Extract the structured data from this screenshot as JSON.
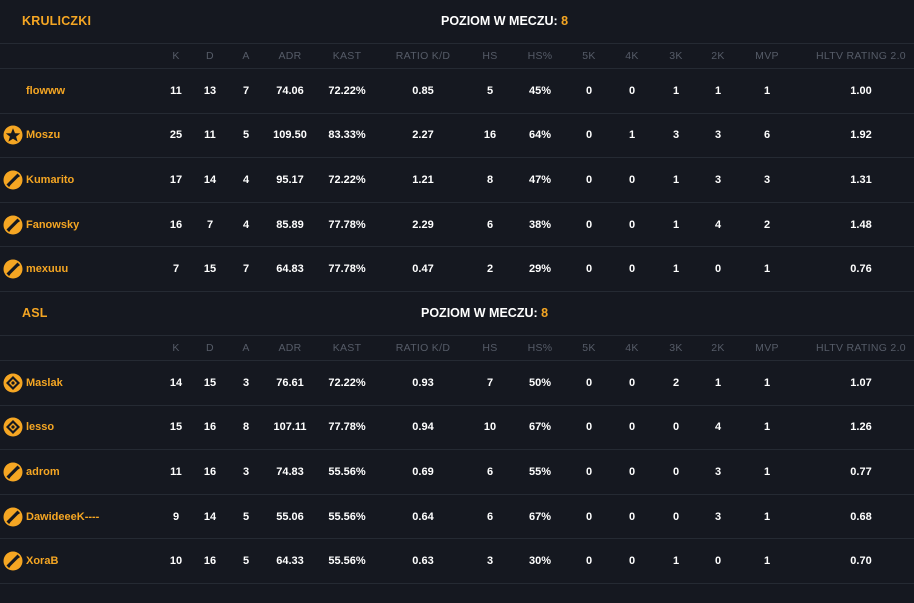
{
  "level_label": "POZIOM W MECZU:",
  "columns": [
    "K",
    "D",
    "A",
    "ADR",
    "KAST",
    "RATIO K/D",
    "HS",
    "HS%",
    "5K",
    "4K",
    "3K",
    "2K",
    "MVP",
    "HLTV RATING 2.0"
  ],
  "teams": [
    {
      "name": "KRULICZKI",
      "level": "8",
      "players": [
        {
          "name": "flowww",
          "icon": "none",
          "k": "11",
          "d": "13",
          "a": "7",
          "adr": "74.06",
          "kast": "72.22%",
          "ratio": "0.85",
          "hs": "5",
          "hsp": "45%",
          "k5": "0",
          "k4": "0",
          "k3": "1",
          "k2": "1",
          "mvp": "1",
          "hltv": "1.00"
        },
        {
          "name": "Moszu",
          "icon": "star-rank-icon",
          "k": "25",
          "d": "11",
          "a": "5",
          "adr": "109.50",
          "kast": "83.33%",
          "ratio": "2.27",
          "hs": "16",
          "hsp": "64%",
          "k5": "0",
          "k4": "1",
          "k3": "3",
          "k2": "3",
          "mvp": "6",
          "hltv": "1.92"
        },
        {
          "name": "Kumarito",
          "icon": "slash-rank-icon",
          "k": "17",
          "d": "14",
          "a": "4",
          "adr": "95.17",
          "kast": "72.22%",
          "ratio": "1.21",
          "hs": "8",
          "hsp": "47%",
          "k5": "0",
          "k4": "0",
          "k3": "1",
          "k2": "3",
          "mvp": "3",
          "hltv": "1.31"
        },
        {
          "name": "Fanowsky",
          "icon": "slash-rank-icon",
          "k": "16",
          "d": "7",
          "a": "4",
          "adr": "85.89",
          "kast": "77.78%",
          "ratio": "2.29",
          "hs": "6",
          "hsp": "38%",
          "k5": "0",
          "k4": "0",
          "k3": "1",
          "k2": "4",
          "mvp": "2",
          "hltv": "1.48"
        },
        {
          "name": "mexuuu",
          "icon": "slash-rank-icon",
          "k": "7",
          "d": "15",
          "a": "7",
          "adr": "64.83",
          "kast": "77.78%",
          "ratio": "0.47",
          "hs": "2",
          "hsp": "29%",
          "k5": "0",
          "k4": "0",
          "k3": "1",
          "k2": "0",
          "mvp": "1",
          "hltv": "0.76"
        }
      ]
    },
    {
      "name": "ASL",
      "level": "8",
      "players": [
        {
          "name": "Maslak",
          "icon": "diamond-rank-icon",
          "k": "14",
          "d": "15",
          "a": "3",
          "adr": "76.61",
          "kast": "72.22%",
          "ratio": "0.93",
          "hs": "7",
          "hsp": "50%",
          "k5": "0",
          "k4": "0",
          "k3": "2",
          "k2": "1",
          "mvp": "1",
          "hltv": "1.07"
        },
        {
          "name": "lesso",
          "icon": "diamond-rank-icon",
          "k": "15",
          "d": "16",
          "a": "8",
          "adr": "107.11",
          "kast": "77.78%",
          "ratio": "0.94",
          "hs": "10",
          "hsp": "67%",
          "k5": "0",
          "k4": "0",
          "k3": "0",
          "k2": "4",
          "mvp": "1",
          "hltv": "1.26"
        },
        {
          "name": "adrom",
          "icon": "slash-rank-icon",
          "k": "11",
          "d": "16",
          "a": "3",
          "adr": "74.83",
          "kast": "55.56%",
          "ratio": "0.69",
          "hs": "6",
          "hsp": "55%",
          "k5": "0",
          "k4": "0",
          "k3": "0",
          "k2": "3",
          "mvp": "1",
          "hltv": "0.77"
        },
        {
          "name": "DawideeeK----",
          "icon": "slash-rank-icon",
          "k": "9",
          "d": "14",
          "a": "5",
          "adr": "55.06",
          "kast": "55.56%",
          "ratio": "0.64",
          "hs": "6",
          "hsp": "67%",
          "k5": "0",
          "k4": "0",
          "k3": "0",
          "k2": "3",
          "mvp": "1",
          "hltv": "0.68"
        },
        {
          "name": "XoraB",
          "icon": "slash-rank-icon",
          "k": "10",
          "d": "16",
          "a": "5",
          "adr": "64.33",
          "kast": "55.56%",
          "ratio": "0.63",
          "hs": "3",
          "hsp": "30%",
          "k5": "0",
          "k4": "0",
          "k3": "1",
          "k2": "0",
          "mvp": "1",
          "hltv": "0.70"
        }
      ]
    }
  ],
  "colors": {
    "accent": "#f5a623",
    "background": "#151820",
    "divider": "#252a33",
    "header_text": "#565c68"
  }
}
